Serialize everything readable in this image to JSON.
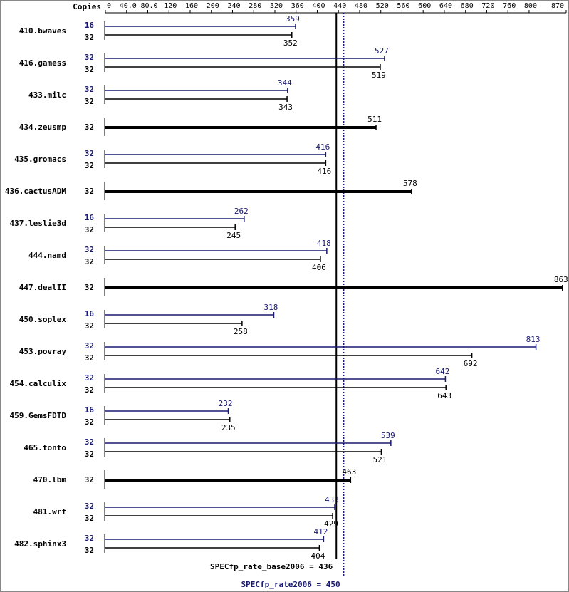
{
  "chart_data": {
    "type": "bar",
    "axis_label": "Copies",
    "categories": [
      "410.bwaves",
      "416.gamess",
      "433.milc",
      "434.zeusmp",
      "435.gromacs",
      "436.cactusADM",
      "437.leslie3d",
      "444.namd",
      "447.dealII",
      "450.soplex",
      "453.povray",
      "454.calculix",
      "459.GemsFDTD",
      "465.tonto",
      "470.lbm",
      "481.wrf",
      "482.sphinx3"
    ],
    "series": [
      {
        "color": "#191970",
        "copies": [
          16,
          32,
          32,
          null,
          32,
          null,
          16,
          32,
          null,
          16,
          32,
          32,
          16,
          32,
          null,
          32,
          32
        ],
        "values": [
          359,
          527,
          344,
          null,
          416,
          null,
          262,
          418,
          null,
          318,
          813,
          642,
          232,
          539,
          null,
          433,
          412
        ]
      },
      {
        "color": "#000000",
        "copies": [
          32,
          32,
          32,
          32,
          32,
          32,
          32,
          32,
          32,
          32,
          32,
          32,
          32,
          32,
          32,
          32,
          32
        ],
        "values": [
          352,
          519,
          343,
          511,
          416,
          578,
          245,
          406,
          863,
          258,
          692,
          643,
          235,
          521,
          463,
          429,
          404
        ]
      }
    ],
    "xlim": [
      0,
      870
    ],
    "xticks": [
      0,
      {
        "value": 40,
        "label": "40.0"
      },
      {
        "value": 80,
        "label": "80.0"
      },
      120,
      160,
      200,
      240,
      280,
      320,
      360,
      400,
      440,
      480,
      520,
      560,
      600,
      640,
      680,
      720,
      760,
      800,
      870
    ],
    "reference_lines": [
      {
        "label": "SPECfp_rate_base2006 =",
        "value": 436,
        "color": "#000000",
        "style": "solid"
      },
      {
        "label": "SPECfp_rate2006 =",
        "value": 450,
        "color": "#191970",
        "style": "dotted"
      }
    ]
  }
}
